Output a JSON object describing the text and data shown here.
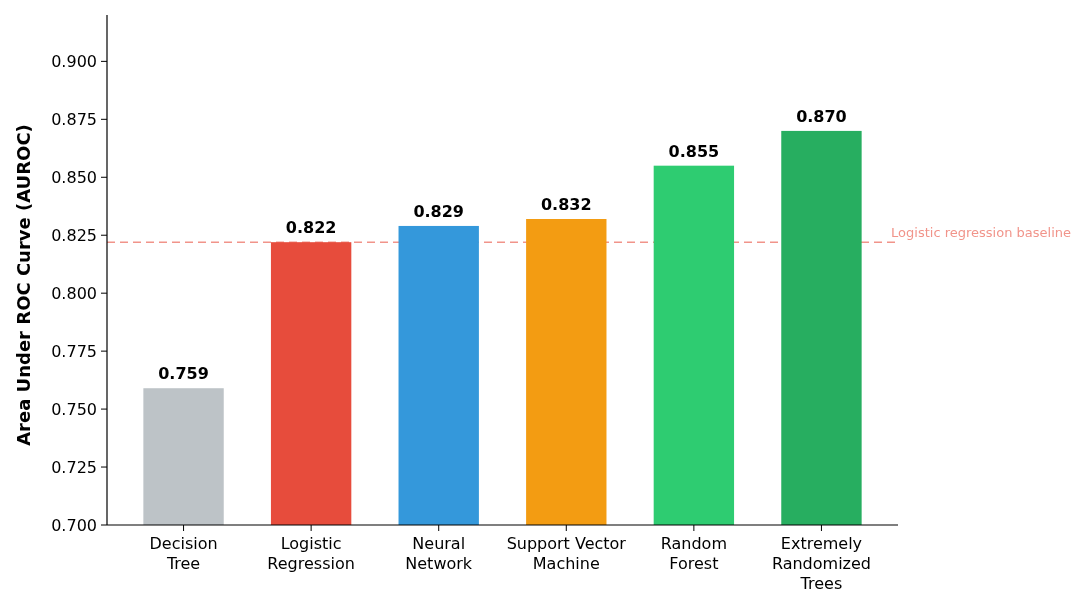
{
  "chart_data": {
    "type": "bar",
    "ylabel": "Area Under ROC Curve (AUROC)",
    "categories": [
      "Decision\nTree",
      "Logistic\nRegression",
      "Neural\nNetwork",
      "Support Vector\nMachine",
      "Random\nForest",
      "Extremely\nRandomized\nTrees"
    ],
    "values": [
      0.759,
      0.822,
      0.829,
      0.832,
      0.855,
      0.87
    ],
    "colors": [
      "#bdc3c7",
      "#e74c3c",
      "#3498db",
      "#f39c12",
      "#2ecc71",
      "#27ae60"
    ],
    "ylim": [
      0.7,
      0.92
    ],
    "yticks": [
      {
        "value": 0.7,
        "label": "0.700"
      },
      {
        "value": 0.725,
        "label": "0.725"
      },
      {
        "value": 0.75,
        "label": "0.750"
      },
      {
        "value": 0.775,
        "label": "0.775"
      },
      {
        "value": 0.8,
        "label": "0.800"
      },
      {
        "value": 0.825,
        "label": "0.825"
      },
      {
        "value": 0.85,
        "label": "0.850"
      },
      {
        "value": 0.875,
        "label": "0.875"
      },
      {
        "value": 0.9,
        "label": "0.900"
      }
    ],
    "value_labels": [
      "0.759",
      "0.822",
      "0.829",
      "0.832",
      "0.855",
      "0.870"
    ],
    "ref_lines": [
      {
        "axis": "y",
        "value": 0.822,
        "label": "Logistic regression baseline",
        "color": "#f1948a",
        "line_style": "dashed"
      }
    ],
    "grid": false
  }
}
